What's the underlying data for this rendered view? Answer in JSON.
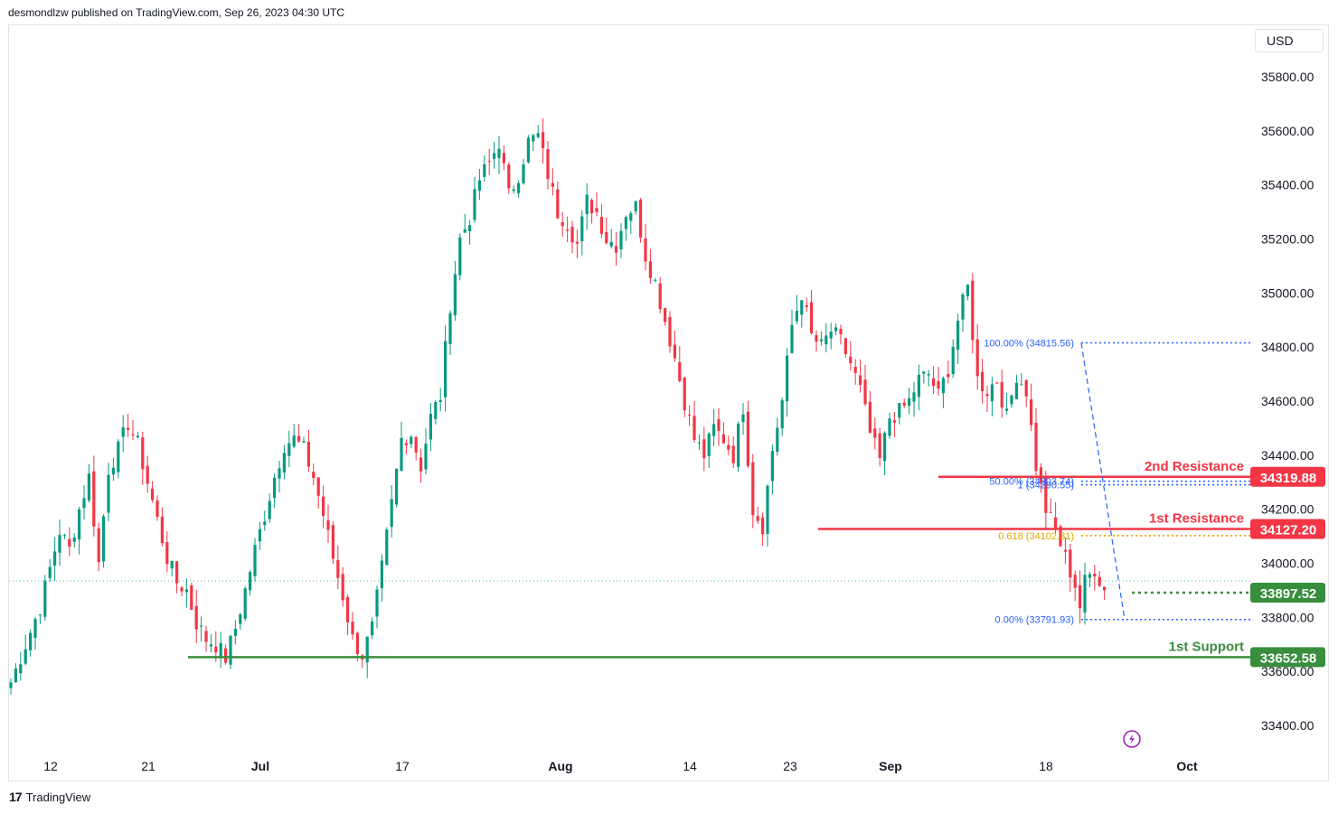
{
  "header": {
    "published_by": "desmondlzw published on TradingView.com, Sep 26, 2023 04:30 UTC"
  },
  "currency_button": "USD",
  "footer": {
    "logo_mark": "17",
    "brand": "TradingView"
  },
  "colors": {
    "up": "#089981",
    "down": "#f23645",
    "resistance": "#f23645",
    "support": "#388e3c",
    "fib": "#2962ff",
    "fib_golden": "#e0a800",
    "flash": "#9c27b0"
  },
  "icons": {
    "flash": "lightning-icon",
    "logo": "tradingview-logo-icon"
  },
  "chart_data": {
    "type": "candlestick",
    "ylim": [
      33300,
      35900
    ],
    "y_ticks": [
      "35800.00",
      "35600.00",
      "35400.00",
      "35200.00",
      "35000.00",
      "34800.00",
      "34600.00",
      "34400.00",
      "34200.00",
      "34000.00",
      "33800.00",
      "33600.00",
      "33400.00"
    ],
    "x_ticks": [
      "12",
      "21",
      "Jul",
      "17",
      "Aug",
      "14",
      "23",
      "Sep",
      "18",
      "Oct"
    ],
    "x_tick_bold": [
      false,
      false,
      true,
      false,
      true,
      false,
      false,
      true,
      false,
      true
    ],
    "last_price": "33897.52",
    "levels": [
      {
        "name": "2nd Resistance",
        "value": 34319.88,
        "label": "34319.88",
        "kind": "resistance"
      },
      {
        "name": "1st Resistance",
        "value": 34127.2,
        "label": "34127.20",
        "kind": "resistance"
      },
      {
        "name": "1st Support",
        "value": 33652.58,
        "label": "33652.58",
        "kind": "support"
      }
    ],
    "fib_levels": [
      {
        "label": "100.00% (34815.56)",
        "value": 34815.56
      },
      {
        "label": "50.00% (34303.74)",
        "value": 34303.74
      },
      {
        "label": "1 (34290.55)",
        "value": 34290.55
      },
      {
        "label": "0.618 (34102.31)",
        "value": 34102.31
      },
      {
        "label": "0.00% (33791.93)",
        "value": 33791.93
      }
    ],
    "price_path": [
      [
        0,
        33560
      ],
      [
        3,
        33700
      ],
      [
        6,
        33840
      ],
      [
        8,
        33980
      ],
      [
        10,
        34120
      ],
      [
        12,
        34050
      ],
      [
        14,
        34200
      ],
      [
        16,
        34320
      ],
      [
        18,
        34000
      ],
      [
        20,
        34350
      ],
      [
        22,
        34420
      ],
      [
        24,
        34520
      ],
      [
        26,
        34440
      ],
      [
        28,
        34300
      ],
      [
        30,
        34160
      ],
      [
        32,
        34020
      ],
      [
        34,
        33930
      ],
      [
        36,
        33900
      ],
      [
        38,
        33780
      ],
      [
        40,
        33720
      ],
      [
        42,
        33700
      ],
      [
        44,
        33650
      ],
      [
        46,
        33760
      ],
      [
        48,
        33900
      ],
      [
        50,
        34050
      ],
      [
        52,
        34180
      ],
      [
        54,
        34320
      ],
      [
        56,
        34440
      ],
      [
        58,
        34460
      ],
      [
        60,
        34420
      ],
      [
        62,
        34320
      ],
      [
        64,
        34180
      ],
      [
        66,
        34020
      ],
      [
        68,
        33880
      ],
      [
        70,
        33720
      ],
      [
        72,
        33660
      ],
      [
        74,
        33760
      ],
      [
        76,
        33980
      ],
      [
        78,
        34220
      ],
      [
        80,
        34460
      ],
      [
        82,
        34480
      ],
      [
        84,
        34360
      ],
      [
        86,
        34540
      ],
      [
        88,
        34620
      ],
      [
        90,
        34960
      ],
      [
        92,
        35200
      ],
      [
        94,
        35280
      ],
      [
        96,
        35420
      ],
      [
        98,
        35480
      ],
      [
        100,
        35560
      ],
      [
        102,
        35360
      ],
      [
        104,
        35440
      ],
      [
        106,
        35560
      ],
      [
        108,
        35580
      ],
      [
        110,
        35440
      ],
      [
        112,
        35300
      ],
      [
        114,
        35260
      ],
      [
        116,
        35180
      ],
      [
        118,
        35340
      ],
      [
        120,
        35300
      ],
      [
        122,
        35200
      ],
      [
        124,
        35180
      ],
      [
        126,
        35300
      ],
      [
        128,
        35320
      ],
      [
        130,
        35140
      ],
      [
        132,
        35040
      ],
      [
        134,
        34900
      ],
      [
        136,
        34760
      ],
      [
        138,
        34600
      ],
      [
        140,
        34460
      ],
      [
        142,
        34400
      ],
      [
        144,
        34500
      ],
      [
        146,
        34460
      ],
      [
        148,
        34400
      ],
      [
        150,
        34580
      ],
      [
        152,
        34200
      ],
      [
        154,
        34140
      ],
      [
        156,
        34420
      ],
      [
        158,
        34600
      ],
      [
        160,
        34880
      ],
      [
        162,
        35000
      ],
      [
        164,
        34840
      ],
      [
        166,
        34800
      ],
      [
        168,
        34860
      ],
      [
        170,
        34820
      ],
      [
        172,
        34740
      ],
      [
        174,
        34640
      ],
      [
        176,
        34480
      ],
      [
        178,
        34380
      ],
      [
        180,
        34540
      ],
      [
        182,
        34560
      ],
      [
        184,
        34600
      ],
      [
        186,
        34680
      ],
      [
        188,
        34700
      ],
      [
        190,
        34620
      ],
      [
        192,
        34720
      ],
      [
        194,
        34900
      ],
      [
        196,
        35020
      ],
      [
        198,
        34680
      ],
      [
        200,
        34640
      ],
      [
        202,
        34680
      ],
      [
        204,
        34540
      ],
      [
        206,
        34700
      ],
      [
        208,
        34640
      ],
      [
        210,
        34360
      ],
      [
        212,
        34200
      ],
      [
        214,
        34120
      ],
      [
        216,
        34020
      ],
      [
        218,
        33920
      ],
      [
        219,
        33840
      ],
      [
        220,
        33930
      ],
      [
        222,
        33980
      ],
      [
        224,
        33900
      ]
    ]
  }
}
